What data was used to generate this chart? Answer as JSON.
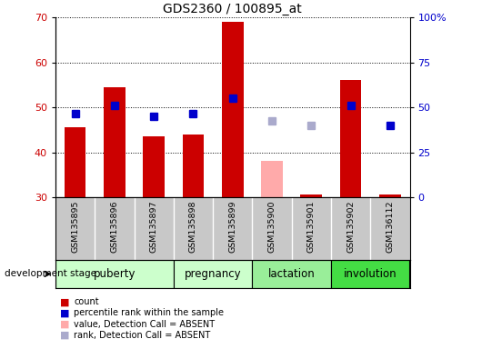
{
  "title": "GDS2360 / 100895_at",
  "samples": [
    "GSM135895",
    "GSM135896",
    "GSM135897",
    "GSM135898",
    "GSM135899",
    "GSM135900",
    "GSM135901",
    "GSM135902",
    "GSM136112"
  ],
  "bar_values": [
    45.5,
    54.5,
    43.5,
    44.0,
    69.0,
    null,
    30.5,
    56.0,
    30.5
  ],
  "bar_absent_values": [
    null,
    null,
    null,
    null,
    null,
    38.0,
    null,
    null,
    null
  ],
  "rank_values": [
    48.5,
    50.5,
    48.0,
    48.5,
    52.0,
    null,
    null,
    50.5,
    46.0
  ],
  "rank_absent_values": [
    null,
    null,
    null,
    null,
    null,
    47.0,
    46.0,
    null,
    null
  ],
  "bar_bottom": 30,
  "bar_color": "#cc0000",
  "bar_absent_color": "#ffaaaa",
  "rank_color": "#0000cc",
  "rank_absent_color": "#aaaacc",
  "ylim_left": [
    30,
    70
  ],
  "ylim_right": [
    0,
    100
  ],
  "yticks_left": [
    30,
    40,
    50,
    60,
    70
  ],
  "yticks_right": [
    0,
    25,
    50,
    75,
    100
  ],
  "ytick_labels_right": [
    "0",
    "25",
    "50",
    "75",
    "100%"
  ],
  "stage_groups": [
    {
      "label": "puberty",
      "start": 0,
      "end": 2,
      "color": "#ccffcc"
    },
    {
      "label": "pregnancy",
      "start": 3,
      "end": 4,
      "color": "#ccffcc"
    },
    {
      "label": "lactation",
      "start": 5,
      "end": 6,
      "color": "#99ee99"
    },
    {
      "label": "involution",
      "start": 7,
      "end": 8,
      "color": "#44dd44"
    }
  ],
  "xlabel_area": "development stage",
  "legend_items": [
    {
      "label": "count",
      "color": "#cc0000"
    },
    {
      "label": "percentile rank within the sample",
      "color": "#0000cc"
    },
    {
      "label": "value, Detection Call = ABSENT",
      "color": "#ffaaaa"
    },
    {
      "label": "rank, Detection Call = ABSENT",
      "color": "#aaaacc"
    }
  ],
  "bar_width": 0.55,
  "rank_marker_size": 6,
  "tick_fontsize": 8,
  "stage_label_fontsize": 8.5,
  "title_fontsize": 10
}
